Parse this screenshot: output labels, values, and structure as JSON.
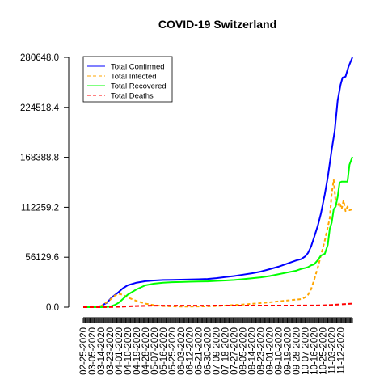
{
  "chart_data": {
    "type": "line",
    "title": "COVID-19 Switzerland",
    "xlabel": "",
    "ylabel": "",
    "ylim": [
      0,
      280648.0
    ],
    "yticks": [
      0.0,
      56129.6,
      112259.2,
      168388.8,
      224518.4,
      280648.0
    ],
    "ytick_labels": [
      "0.0",
      "56129.6",
      "112259.2",
      "168388.8",
      "224518.4",
      "280648.0"
    ],
    "xlim": [
      "2020-02-25",
      "2020-11-24"
    ],
    "xtick_labels": [
      "02-25-2020",
      "03-05-2020",
      "03-14-2020",
      "03-23-2020",
      "04-01-2020",
      "04-10-2020",
      "04-19-2020",
      "04-28-2020",
      "05-07-2020",
      "05-16-2020",
      "05-25-2020",
      "06-03-2020",
      "06-12-2020",
      "06-21-2020",
      "06-30-2020",
      "07-09-2020",
      "07-18-2020",
      "07-27-2020",
      "08-05-2020",
      "08-14-2020",
      "08-23-2020",
      "09-01-2020",
      "09-10-2020",
      "09-19-2020",
      "09-28-2020",
      "10-07-2020",
      "10-16-2020",
      "10-25-2020",
      "11-03-2020",
      "11-12-2020"
    ],
    "grid": false,
    "legend_position": "top-left",
    "series": [
      {
        "name": "Total Confirmed",
        "color": "#0000ff",
        "style": "solid",
        "points": [
          [
            "2020-02-25",
            0
          ],
          [
            "2020-03-05",
            100
          ],
          [
            "2020-03-10",
            500
          ],
          [
            "2020-03-14",
            1300
          ],
          [
            "2020-03-20",
            5000
          ],
          [
            "2020-03-25",
            11000
          ],
          [
            "2020-04-01",
            17000
          ],
          [
            "2020-04-05",
            21000
          ],
          [
            "2020-04-10",
            24500
          ],
          [
            "2020-04-19",
            27500
          ],
          [
            "2020-04-28",
            29200
          ],
          [
            "2020-05-07",
            30000
          ],
          [
            "2020-05-16",
            30500
          ],
          [
            "2020-05-25",
            30700
          ],
          [
            "2020-06-03",
            30900
          ],
          [
            "2020-06-12",
            31100
          ],
          [
            "2020-06-21",
            31300
          ],
          [
            "2020-06-30",
            31700
          ],
          [
            "2020-07-09",
            32600
          ],
          [
            "2020-07-18",
            33800
          ],
          [
            "2020-07-27",
            35000
          ],
          [
            "2020-08-05",
            36500
          ],
          [
            "2020-08-14",
            38000
          ],
          [
            "2020-08-23",
            40000
          ],
          [
            "2020-09-01",
            42700
          ],
          [
            "2020-09-10",
            45500
          ],
          [
            "2020-09-19",
            49000
          ],
          [
            "2020-09-28",
            52500
          ],
          [
            "2020-10-03",
            54000
          ],
          [
            "2020-10-07",
            57000
          ],
          [
            "2020-10-10",
            61000
          ],
          [
            "2020-10-13",
            68000
          ],
          [
            "2020-10-16",
            78000
          ],
          [
            "2020-10-20",
            92000
          ],
          [
            "2020-10-23",
            105000
          ],
          [
            "2020-10-27",
            127000
          ],
          [
            "2020-10-30",
            146000
          ],
          [
            "2020-11-03",
            177000
          ],
          [
            "2020-11-06",
            198000
          ],
          [
            "2020-11-09",
            232000
          ],
          [
            "2020-11-12",
            250000
          ],
          [
            "2020-11-14",
            258000
          ],
          [
            "2020-11-17",
            259000
          ],
          [
            "2020-11-20",
            270000
          ],
          [
            "2020-11-24",
            280648
          ]
        ]
      },
      {
        "name": "Total Infected",
        "color": "#ffa500",
        "style": "dashed",
        "points": [
          [
            "2020-02-25",
            0
          ],
          [
            "2020-03-05",
            100
          ],
          [
            "2020-03-14",
            1200
          ],
          [
            "2020-03-23",
            8000
          ],
          [
            "2020-03-28",
            13000
          ],
          [
            "2020-04-01",
            15000
          ],
          [
            "2020-04-05",
            14000
          ],
          [
            "2020-04-10",
            11000
          ],
          [
            "2020-04-19",
            7000
          ],
          [
            "2020-04-28",
            4000
          ],
          [
            "2020-05-07",
            2200
          ],
          [
            "2020-05-16",
            1300
          ],
          [
            "2020-05-25",
            900
          ],
          [
            "2020-06-03",
            700
          ],
          [
            "2020-06-12",
            700
          ],
          [
            "2020-06-21",
            800
          ],
          [
            "2020-06-30",
            1000
          ],
          [
            "2020-07-09",
            1300
          ],
          [
            "2020-07-18",
            1800
          ],
          [
            "2020-07-27",
            2500
          ],
          [
            "2020-08-05",
            3000
          ],
          [
            "2020-08-14",
            3800
          ],
          [
            "2020-08-23",
            4600
          ],
          [
            "2020-09-01",
            5500
          ],
          [
            "2020-09-10",
            6500
          ],
          [
            "2020-09-19",
            7500
          ],
          [
            "2020-09-28",
            8500
          ],
          [
            "2020-10-03",
            9000
          ],
          [
            "2020-10-07",
            11000
          ],
          [
            "2020-10-10",
            14000
          ],
          [
            "2020-10-13",
            20000
          ],
          [
            "2020-10-16",
            30000
          ],
          [
            "2020-10-20",
            45000
          ],
          [
            "2020-10-23",
            58000
          ],
          [
            "2020-10-27",
            75000
          ],
          [
            "2020-10-30",
            90000
          ],
          [
            "2020-11-01",
            100000
          ],
          [
            "2020-11-03",
            128000
          ],
          [
            "2020-11-05",
            143000
          ],
          [
            "2020-11-07",
            118000
          ],
          [
            "2020-11-09",
            113000
          ],
          [
            "2020-11-11",
            118000
          ],
          [
            "2020-11-13",
            110000
          ],
          [
            "2020-11-15",
            120000
          ],
          [
            "2020-11-17",
            108000
          ],
          [
            "2020-11-19",
            113000
          ],
          [
            "2020-11-21",
            109000
          ],
          [
            "2020-11-24",
            110000
          ]
        ]
      },
      {
        "name": "Total Recovered",
        "color": "#00ff00",
        "style": "solid",
        "points": [
          [
            "2020-02-25",
            0
          ],
          [
            "2020-03-14",
            0
          ],
          [
            "2020-03-23",
            500
          ],
          [
            "2020-03-28",
            2500
          ],
          [
            "2020-04-01",
            5000
          ],
          [
            "2020-04-05",
            9000
          ],
          [
            "2020-04-10",
            14000
          ],
          [
            "2020-04-19",
            20000
          ],
          [
            "2020-04-28",
            24500
          ],
          [
            "2020-05-07",
            26500
          ],
          [
            "2020-05-16",
            27500
          ],
          [
            "2020-05-25",
            28000
          ],
          [
            "2020-06-03",
            28300
          ],
          [
            "2020-06-12",
            28600
          ],
          [
            "2020-06-21",
            28800
          ],
          [
            "2020-06-30",
            29000
          ],
          [
            "2020-07-09",
            29500
          ],
          [
            "2020-07-18",
            30000
          ],
          [
            "2020-07-27",
            30500
          ],
          [
            "2020-08-05",
            31500
          ],
          [
            "2020-08-14",
            32500
          ],
          [
            "2020-08-23",
            33500
          ],
          [
            "2020-09-01",
            35000
          ],
          [
            "2020-09-10",
            37000
          ],
          [
            "2020-09-19",
            39000
          ],
          [
            "2020-09-28",
            41000
          ],
          [
            "2020-10-03",
            43000
          ],
          [
            "2020-10-07",
            44000
          ],
          [
            "2020-10-10",
            45000
          ],
          [
            "2020-10-13",
            47000
          ],
          [
            "2020-10-16",
            48000
          ],
          [
            "2020-10-20",
            53000
          ],
          [
            "2020-10-23",
            58000
          ],
          [
            "2020-10-27",
            60000
          ],
          [
            "2020-10-30",
            70000
          ],
          [
            "2020-11-01",
            88000
          ],
          [
            "2020-11-03",
            95000
          ],
          [
            "2020-11-05",
            110000
          ],
          [
            "2020-11-07",
            113000
          ],
          [
            "2020-11-09",
            124000
          ],
          [
            "2020-11-11",
            140000
          ],
          [
            "2020-11-13",
            141000
          ],
          [
            "2020-11-17",
            141000
          ],
          [
            "2020-11-19",
            141000
          ],
          [
            "2020-11-21",
            160000
          ],
          [
            "2020-11-24",
            169000
          ]
        ]
      },
      {
        "name": "Total Deaths",
        "color": "#ff0000",
        "style": "dashed",
        "points": [
          [
            "2020-02-25",
            0
          ],
          [
            "2020-03-14",
            10
          ],
          [
            "2020-03-23",
            150
          ],
          [
            "2020-04-01",
            450
          ],
          [
            "2020-04-10",
            900
          ],
          [
            "2020-04-19",
            1300
          ],
          [
            "2020-04-28",
            1500
          ],
          [
            "2020-05-07",
            1700
          ],
          [
            "2020-05-25",
            1700
          ],
          [
            "2020-06-30",
            1750
          ],
          [
            "2020-07-27",
            1800
          ],
          [
            "2020-08-23",
            1800
          ],
          [
            "2020-09-28",
            1850
          ],
          [
            "2020-10-07",
            1900
          ],
          [
            "2020-10-16",
            1950
          ],
          [
            "2020-10-25",
            2100
          ],
          [
            "2020-11-03",
            2500
          ],
          [
            "2020-11-12",
            3200
          ],
          [
            "2020-11-24",
            4000
          ]
        ]
      }
    ]
  }
}
